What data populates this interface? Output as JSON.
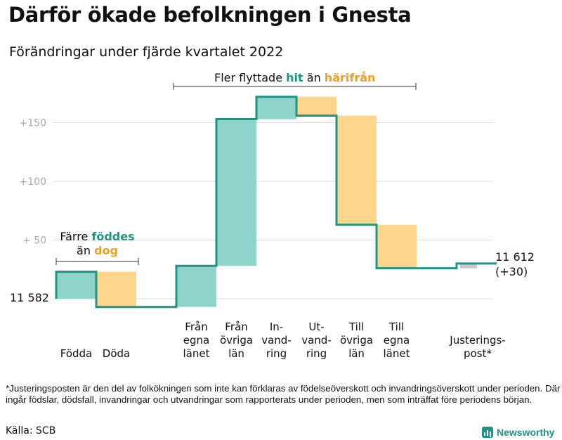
{
  "title": "Därför ökade befolkningen i Gnesta",
  "subtitle": "Förändringar under fjärde kvartalet 2022",
  "top_note": {
    "prefix": "Fler flyttade ",
    "green": "hit",
    "middle": " än ",
    "orange": "härifrån"
  },
  "left_note": {
    "line1_prefix": "Färre ",
    "green": "föddes",
    "line2_prefix": "än ",
    "orange": "dog"
  },
  "start_label": "11 582",
  "end_label": {
    "value": "11 612",
    "change": "(+30)"
  },
  "footnote": "*Justeringsposten är den del av folkökningen som inte kan förklaras av födelseöverskott och invandringsöverskott under perioden. Där ingår födslar, dödsfall, invandringar och utvandringar som rapporterats under perioden, men som inträffat före periodens början.",
  "source": "Källa: SCB",
  "brand": "Newsworthy",
  "colors": {
    "increase": "#8ed4ca",
    "decrease": "#fdd58d",
    "line": "#1f9484",
    "adjustment": "#c8c8c8",
    "grid": "#dddddd"
  },
  "chart_data": {
    "type": "waterfall",
    "title": "Därför ökade befolkningen i Gnesta",
    "subtitle": "Förändringar under fjärde kvartalet 2022",
    "start_value": 11582,
    "end_value": 11612,
    "net_change": 30,
    "y_ticks": [
      "+150",
      "+100",
      "+ 50"
    ],
    "y_tick_values": [
      150,
      100,
      50
    ],
    "ylim": [
      0,
      175
    ],
    "grid": true,
    "categories": [
      {
        "label": "Födda",
        "change": 23
      },
      {
        "label": "Döda",
        "change": -30
      },
      {
        "label": "Från egna länet",
        "change": 35
      },
      {
        "label": "Från övriga län",
        "change": 125
      },
      {
        "label": "In-vandring",
        "change": 19
      },
      {
        "label": "Ut-vandring",
        "change": -16
      },
      {
        "label": "Till övriga län",
        "change": -93
      },
      {
        "label": "Till egna länet",
        "change": -37
      },
      {
        "label": "Justerings-post*",
        "change": 4
      }
    ],
    "category_lines": [
      [
        "Födda"
      ],
      [
        "Döda"
      ],
      [
        "Från",
        "egna",
        "länet"
      ],
      [
        "Från",
        "övriga",
        "län"
      ],
      [
        "In-",
        "vand-",
        "ring"
      ],
      [
        "Ut-",
        "vand-",
        "ring"
      ],
      [
        "Till",
        "övriga",
        "län"
      ],
      [
        "Till",
        "egna",
        "länet"
      ],
      [
        "Justerings-",
        "post*"
      ]
    ]
  }
}
